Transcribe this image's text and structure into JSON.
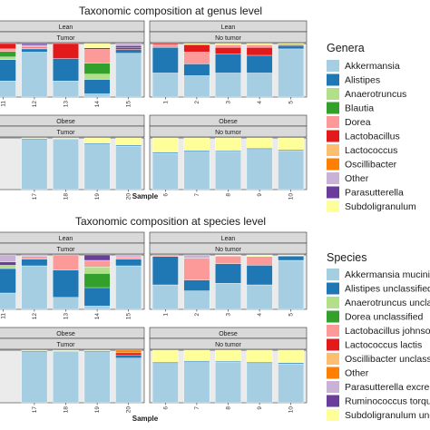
{
  "chart_data": [
    {
      "type": "bar",
      "stacked": true,
      "title": "Taxonomic composition at genus level",
      "xlabel": "Sample",
      "ylabel": "",
      "ylim": [
        0,
        1
      ],
      "legend": {
        "title": "Genera",
        "placement": "right",
        "entries": [
          {
            "name": "Akkermansia",
            "color": "#a6cee3"
          },
          {
            "name": "Alistipes",
            "color": "#1f78b4"
          },
          {
            "name": "Anaerotruncus",
            "color": "#b2df8a"
          },
          {
            "name": "Blautia",
            "color": "#33a02c"
          },
          {
            "name": "Dorea",
            "color": "#fb9a99"
          },
          {
            "name": "Lactobacillus",
            "color": "#e31a1c"
          },
          {
            "name": "Lactococcus",
            "color": "#fdbf6f"
          },
          {
            "name": "Oscillibacter",
            "color": "#ff7f00"
          },
          {
            "name": "Other",
            "color": "#cab2d6"
          },
          {
            "name": "Parasutterella",
            "color": "#6a3d9a"
          },
          {
            "name": "Subdoligranulum",
            "color": "#ffff99"
          }
        ]
      },
      "facets": [
        {
          "row": "Lean",
          "col": "Tumor",
          "categories": [
            "11",
            "12",
            "13",
            "14",
            "15"
          ],
          "bars": [
            [
              0.3,
              0.4,
              0.05,
              0.1,
              0.05,
              0.1
            ],
            [
              0.84,
              0.06,
              0.02,
              0.02,
              0.03,
              0.03
            ],
            [
              0.3,
              0.42,
              0.28
            ],
            [
              0.06,
              0.27,
              0.1,
              0.2,
              0.26,
              0.03,
              0.08
            ],
            [
              0.82,
              0.07,
              0.03,
              0.04,
              0.04
            ]
          ],
          "segment_colors": [
            [
              "#a6cee3",
              "#1f78b4",
              "#b2df8a",
              "#33a02c",
              "#fb9a99",
              "#e31a1c"
            ],
            [
              "#a6cee3",
              "#1f78b4",
              "#fb9a99",
              "#e31a1c",
              "#cab2d6",
              "#6a3d9a"
            ],
            [
              "#a6cee3",
              "#1f78b4",
              "#e31a1c"
            ],
            [
              "#a6cee3",
              "#1f78b4",
              "#b2df8a",
              "#33a02c",
              "#fb9a99",
              "#e31a1c",
              "#ffff99"
            ],
            [
              "#a6cee3",
              "#1f78b4",
              "#e31a1c",
              "#6a3d9a",
              "#cab2d6"
            ]
          ]
        },
        {
          "row": "Lean",
          "col": "No tumor",
          "categories": [
            "1",
            "2",
            "3",
            "4",
            "5"
          ],
          "bars": [
            [
              0.45,
              0.48,
              0.05,
              0.02
            ],
            [
              0.4,
              0.22,
              0.22,
              0.14,
              0.02
            ],
            [
              0.45,
              0.36,
              0.12,
              0.05,
              0.02
            ],
            [
              0.45,
              0.33,
              0.15,
              0.05,
              0.02
            ],
            [
              0.9,
              0.06,
              0.02,
              0.02
            ]
          ],
          "segment_colors": [
            [
              "#a6cee3",
              "#1f78b4",
              "#fb9a99",
              "#e31a1c"
            ],
            [
              "#a6cee3",
              "#1f78b4",
              "#fb9a99",
              "#e31a1c",
              "#ffff99"
            ],
            [
              "#a6cee3",
              "#1f78b4",
              "#e31a1c",
              "#fb9a99",
              "#ffff99"
            ],
            [
              "#a6cee3",
              "#1f78b4",
              "#e31a1c",
              "#fb9a99",
              "#ffff99"
            ],
            [
              "#a6cee3",
              "#1f78b4",
              "#e31a1c",
              "#ffff99"
            ]
          ]
        },
        {
          "row": "Obese",
          "col": "Tumor",
          "categories": [
            "17",
            "18",
            "19",
            "20"
          ],
          "bars": [
            [
              0.97,
              0.02,
              0.01
            ],
            [
              0.98,
              0.01,
              0.01
            ],
            [
              0.88,
              0.02,
              0.1
            ],
            [
              0.84,
              0.02,
              0.14
            ]
          ],
          "segment_colors": [
            [
              "#a6cee3",
              "#1f78b4",
              "#ffff99"
            ],
            [
              "#a6cee3",
              "#1f78b4",
              "#ffff99"
            ],
            [
              "#a6cee3",
              "#1f78b4",
              "#ffff99"
            ],
            [
              "#a6cee3",
              "#1f78b4",
              "#ffff99"
            ]
          ]
        },
        {
          "row": "Obese",
          "col": "No tumor",
          "categories": [
            "6",
            "7",
            "8",
            "9",
            "10"
          ],
          "bars": [
            [
              0.7,
              0.02,
              0.28
            ],
            [
              0.74,
              0.02,
              0.24
            ],
            [
              0.73,
              0.02,
              0.25
            ],
            [
              0.78,
              0.02,
              0.2
            ],
            [
              0.75,
              0.02,
              0.23
            ]
          ],
          "segment_colors": [
            [
              "#a6cee3",
              "#1f78b4",
              "#ffff99"
            ],
            [
              "#a6cee3",
              "#1f78b4",
              "#ffff99"
            ],
            [
              "#a6cee3",
              "#1f78b4",
              "#ffff99"
            ],
            [
              "#a6cee3",
              "#1f78b4",
              "#ffff99"
            ],
            [
              "#a6cee3",
              "#1f78b4",
              "#ffff99"
            ]
          ]
        }
      ]
    },
    {
      "type": "bar",
      "stacked": true,
      "title": "Taxonomic composition at species level",
      "xlabel": "Sample",
      "ylabel": "",
      "ylim": [
        0,
        1
      ],
      "legend": {
        "title": "Species",
        "placement": "right",
        "entries": [
          {
            "name": "Akkermansia mucinip",
            "color": "#a6cee3"
          },
          {
            "name": "Alistipes unclassified",
            "color": "#1f78b4"
          },
          {
            "name": "Anaerotruncus uncla",
            "color": "#b2df8a"
          },
          {
            "name": "Dorea unclassified",
            "color": "#33a02c"
          },
          {
            "name": "Lactobacillus johnso",
            "color": "#fb9a99"
          },
          {
            "name": "Lactococcus lactis",
            "color": "#e31a1c"
          },
          {
            "name": "Oscillibacter unclassi",
            "color": "#fdbf6f"
          },
          {
            "name": "Other",
            "color": "#ff7f00"
          },
          {
            "name": "Parasutterella excrem",
            "color": "#cab2d6"
          },
          {
            "name": "Ruminococcus torque",
            "color": "#6a3d9a"
          },
          {
            "name": "Subdoligranulum unc",
            "color": "#ffff99"
          }
        ]
      },
      "facets": [
        {
          "row": "Lean",
          "col": "Tumor",
          "categories": [
            "11",
            "12",
            "13",
            "14",
            "15"
          ],
          "bars": [
            [
              0.3,
              0.45,
              0.06,
              0.06,
              0.13
            ],
            [
              0.8,
              0.12,
              0.05,
              0.03
            ],
            [
              0.22,
              0.5,
              0.28
            ],
            [
              0.06,
              0.34,
              0.26,
              0.12,
              0.12,
              0.1
            ],
            [
              0.8,
              0.12,
              0.04,
              0.04
            ]
          ],
          "segment_colors": [
            [
              "#a6cee3",
              "#1f78b4",
              "#b2df8a",
              "#6a3d9a",
              "#cab2d6"
            ],
            [
              "#a6cee3",
              "#1f78b4",
              "#fb9a99",
              "#cab2d6"
            ],
            [
              "#a6cee3",
              "#1f78b4",
              "#fb9a99"
            ],
            [
              "#a6cee3",
              "#1f78b4",
              "#33a02c",
              "#b2df8a",
              "#fb9a99",
              "#6a3d9a"
            ],
            [
              "#a6cee3",
              "#1f78b4",
              "#fb9a99",
              "#cab2d6"
            ]
          ]
        },
        {
          "row": "Lean",
          "col": "No tumor",
          "categories": [
            "1",
            "2",
            "3",
            "4",
            "5"
          ],
          "bars": [
            [
              0.45,
              0.52,
              0.03
            ],
            [
              0.34,
              0.2,
              0.4,
              0.06
            ],
            [
              0.48,
              0.36,
              0.14,
              0.02
            ],
            [
              0.45,
              0.36,
              0.16,
              0.03
            ],
            [
              0.9,
              0.08,
              0.02
            ]
          ],
          "segment_colors": [
            [
              "#a6cee3",
              "#1f78b4",
              "#fb9a99"
            ],
            [
              "#a6cee3",
              "#1f78b4",
              "#fb9a99",
              "#cab2d6"
            ],
            [
              "#a6cee3",
              "#1f78b4",
              "#fb9a99",
              "#ffff99"
            ],
            [
              "#a6cee3",
              "#1f78b4",
              "#fb9a99",
              "#ffff99"
            ],
            [
              "#a6cee3",
              "#1f78b4",
              "#ffff99"
            ]
          ]
        },
        {
          "row": "Obese",
          "col": "Tumor",
          "categories": [
            "17",
            "18",
            "19",
            "20"
          ],
          "bars": [
            [
              0.97,
              0.02,
              0.01
            ],
            [
              0.98,
              0.01,
              0.01
            ],
            [
              0.97,
              0.02,
              0.01
            ],
            [
              0.85,
              0.05,
              0.05,
              0.05
            ]
          ],
          "segment_colors": [
            [
              "#a6cee3",
              "#1f78b4",
              "#ffff99"
            ],
            [
              "#a6cee3",
              "#1f78b4",
              "#ffff99"
            ],
            [
              "#a6cee3",
              "#1f78b4",
              "#ffff99"
            ],
            [
              "#a6cee3",
              "#1f78b4",
              "#e31a1c",
              "#ff7f00"
            ]
          ]
        },
        {
          "row": "Obese",
          "col": "No tumor",
          "categories": [
            "6",
            "7",
            "8",
            "9",
            "10"
          ],
          "bars": [
            [
              0.75,
              0.02,
              0.23
            ],
            [
              0.78,
              0.02,
              0.2
            ],
            [
              0.77,
              0.02,
              0.21
            ],
            [
              0.75,
              0.02,
              0.23
            ],
            [
              0.74,
              0.02,
              0.24
            ]
          ],
          "segment_colors": [
            [
              "#a6cee3",
              "#1f78b4",
              "#ffff99"
            ],
            [
              "#a6cee3",
              "#1f78b4",
              "#ffff99"
            ],
            [
              "#a6cee3",
              "#1f78b4",
              "#ffff99"
            ],
            [
              "#a6cee3",
              "#1f78b4",
              "#ffff99"
            ],
            [
              "#a6cee3",
              "#1f78b4",
              "#ffff99"
            ]
          ]
        }
      ]
    }
  ]
}
